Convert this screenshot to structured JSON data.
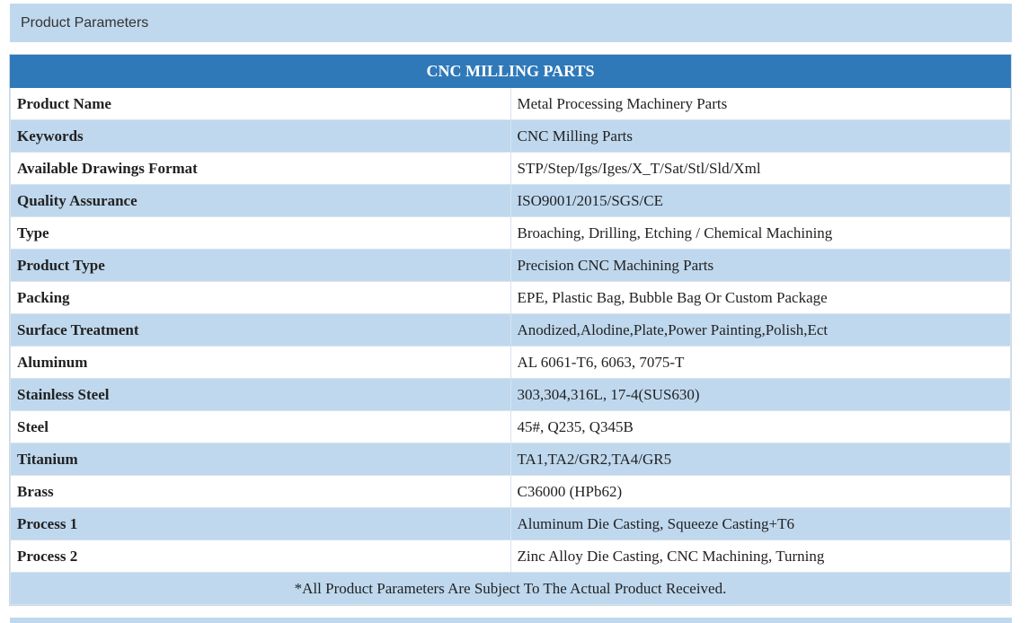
{
  "header": {
    "title": "Product Parameters"
  },
  "table": {
    "title": "CNC MILLING PARTS",
    "rows": [
      {
        "label": "Product Name",
        "value": "Metal Processing Machinery Parts"
      },
      {
        "label": "Keywords",
        "value": "CNC Milling Parts"
      },
      {
        "label": "Available Drawings Format",
        "value": "STP/Step/Igs/Iges/X_T/Sat/Stl/Sld/Xml"
      },
      {
        "label": "Quality Assurance",
        "value": "ISO9001/2015/SGS/CE"
      },
      {
        "label": "Type",
        "value": "Broaching, Drilling, Etching / Chemical Machining"
      },
      {
        "label": "Product Type",
        "value": "Precision CNC Machining Parts"
      },
      {
        "label": "Packing",
        "value": "EPE, Plastic Bag, Bubble Bag Or Custom Package"
      },
      {
        "label": "Surface Treatment",
        "value": "Anodized,Alodine,Plate,Power Painting,Polish,Ect"
      },
      {
        "label": "Aluminum",
        "value": "AL 6061-T6, 6063, 7075-T"
      },
      {
        "label": "Stainless Steel",
        "value": "303,304,316L, 17-4(SUS630)"
      },
      {
        "label": "Steel",
        "value": "45#, Q235, Q345B"
      },
      {
        "label": "Titanium",
        "value": "TA1,TA2/GR2,TA4/GR5"
      },
      {
        "label": "Brass",
        "value": "C36000 (HPb62)"
      },
      {
        "label": "Process 1",
        "value": "Aluminum Die Casting, Squeeze Casting+T6"
      },
      {
        "label": "Process 2",
        "value": "Zinc Alloy Die Casting, CNC Machining, Turning"
      }
    ],
    "footnote": "*All Product Parameters Are Subject To The Actual Product Received."
  },
  "colors": {
    "title_bar": "#2f79b9",
    "alt_row": "#bfd8ee",
    "header_bg": "#bfd8ee"
  }
}
